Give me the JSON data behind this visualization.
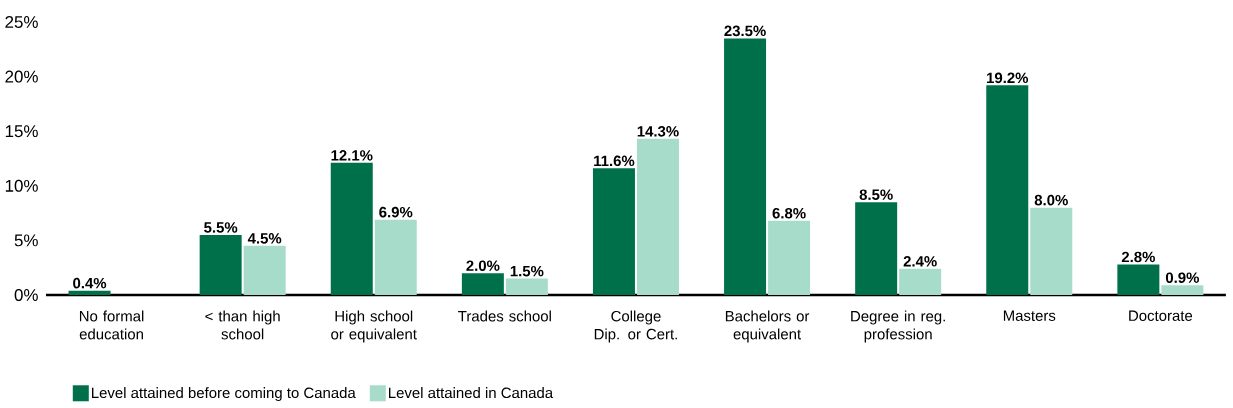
{
  "chart_data": {
    "type": "bar",
    "categories": [
      "No formal education",
      "< than high school",
      "High school or equivalent",
      "Trades school",
      "College Dip. or Cert.",
      "Bachelors or equivalent",
      "Degree in reg. profession",
      "Masters",
      "Doctorate"
    ],
    "series": [
      {
        "name": "Level attained before coming to Canada",
        "color": "#00704a",
        "values": [
          0.4,
          5.5,
          12.1,
          2.0,
          11.6,
          23.5,
          8.5,
          19.2,
          2.8
        ],
        "value_labels": [
          "0.4%",
          "5.5%",
          "12.1%",
          "2.0%",
          "11.6%",
          "23.5%",
          "8.5%",
          "19.2%",
          "2.8%"
        ]
      },
      {
        "name": "Level attained in Canada",
        "color": "#a8dcca",
        "values": [
          null,
          4.5,
          6.9,
          1.5,
          14.3,
          6.8,
          2.4,
          8.0,
          0.9
        ],
        "value_labels": [
          null,
          "4.5%",
          "6.9%",
          "1.5%",
          "14.3%",
          "6.8%",
          "2.4%",
          "8.0%",
          "0.9%"
        ]
      }
    ],
    "ylim": [
      0,
      25
    ],
    "yticks": [
      {
        "value": 0,
        "label": "0%"
      },
      {
        "value": 5,
        "label": "5%"
      },
      {
        "value": 10,
        "label": "10%"
      },
      {
        "value": 15,
        "label": "15%"
      },
      {
        "value": 20,
        "label": "20%"
      },
      {
        "value": 25,
        "label": "25%"
      }
    ],
    "legend": "bottom left"
  }
}
